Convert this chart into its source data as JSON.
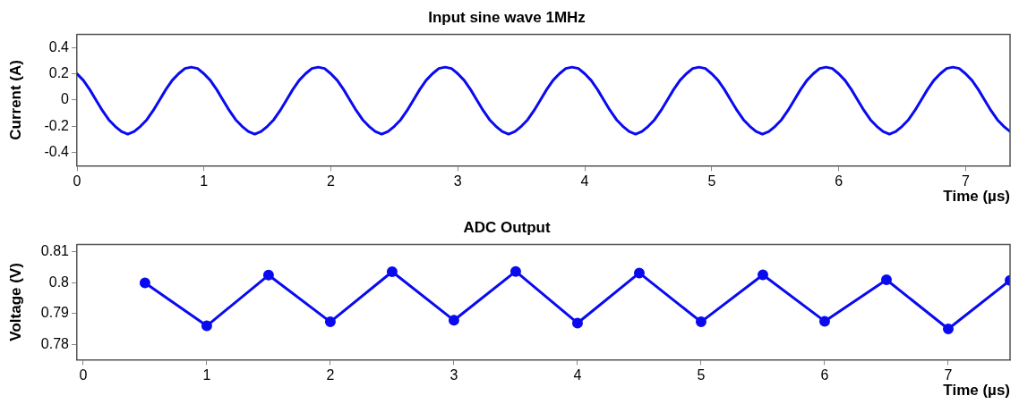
{
  "chart_data": [
    {
      "type": "line",
      "title": "Input sine wave 1MHz",
      "xlabel": "Time (µs)",
      "ylabel": "Current (A)",
      "marker": "none",
      "line_style": "solid",
      "grid": false,
      "legend": false,
      "xlim": [
        0,
        7.35
      ],
      "xticks": [
        0,
        1,
        2,
        3,
        4,
        5,
        6,
        7
      ],
      "ylim": [
        -0.5,
        0.5
      ],
      "yticks": [
        -0.4,
        -0.2,
        0,
        0.2,
        0.4
      ],
      "series": [
        {
          "color": "#0a0af0",
          "x": [
            0,
            0.05,
            0.1,
            0.15,
            0.2,
            0.25,
            0.3,
            0.35,
            0.4,
            0.45,
            0.5,
            0.55,
            0.6,
            0.65,
            0.7,
            0.75,
            0.8,
            0.85,
            0.9,
            0.95,
            1,
            1.05,
            1.1,
            1.15,
            1.2,
            1.25,
            1.3,
            1.35,
            1.4,
            1.45,
            1.5,
            1.55,
            1.6,
            1.65,
            1.7,
            1.75,
            1.8,
            1.85,
            1.9,
            1.95,
            2,
            2.05,
            2.1,
            2.15,
            2.2,
            2.25,
            2.3,
            2.35,
            2.4,
            2.45,
            2.5,
            2.55,
            2.6,
            2.65,
            2.7,
            2.75,
            2.8,
            2.85,
            2.9,
            2.95,
            3,
            3.05,
            3.1,
            3.15,
            3.2,
            3.25,
            3.3,
            3.35,
            3.4,
            3.45,
            3.5,
            3.55,
            3.6,
            3.65,
            3.7,
            3.75,
            3.8,
            3.85,
            3.9,
            3.95,
            4,
            4.05,
            4.1,
            4.15,
            4.2,
            4.25,
            4.3,
            4.35,
            4.4,
            4.45,
            4.5,
            4.55,
            4.6,
            4.65,
            4.7,
            4.75,
            4.8,
            4.85,
            4.9,
            4.95,
            5,
            5.05,
            5.1,
            5.15,
            5.2,
            5.25,
            5.3,
            5.35,
            5.4,
            5.45,
            5.5,
            5.55,
            5.6,
            5.65,
            5.7,
            5.75,
            5.8,
            5.85,
            5.9,
            5.95,
            6,
            6.05,
            6.1,
            6.15,
            6.2,
            6.25,
            6.3,
            6.35,
            6.4,
            6.45,
            6.5,
            6.55,
            6.6,
            6.65,
            6.7,
            6.75,
            6.8,
            6.85,
            6.9,
            6.95,
            7,
            7.05,
            7.1,
            7.15,
            7.2,
            7.25,
            7.3,
            7.35
          ],
          "values": [
            0.2,
            0.15,
            0.08,
            0,
            -0.08,
            -0.15,
            -0.2,
            -0.24,
            -0.26,
            -0.24,
            -0.2,
            -0.15,
            -0.08,
            0,
            0.08,
            0.15,
            0.2,
            0.24,
            0.25,
            0.24,
            0.2,
            0.15,
            0.08,
            0,
            -0.08,
            -0.15,
            -0.2,
            -0.24,
            -0.26,
            -0.24,
            -0.2,
            -0.15,
            -0.08,
            0,
            0.08,
            0.15,
            0.2,
            0.24,
            0.25,
            0.24,
            0.2,
            0.15,
            0.08,
            0,
            -0.08,
            -0.15,
            -0.2,
            -0.24,
            -0.26,
            -0.24,
            -0.2,
            -0.15,
            -0.08,
            0,
            0.08,
            0.15,
            0.2,
            0.24,
            0.25,
            0.24,
            0.2,
            0.15,
            0.08,
            0,
            -0.08,
            -0.15,
            -0.2,
            -0.24,
            -0.26,
            -0.24,
            -0.2,
            -0.15,
            -0.08,
            0,
            0.08,
            0.15,
            0.2,
            0.24,
            0.25,
            0.24,
            0.2,
            0.15,
            0.08,
            0,
            -0.08,
            -0.15,
            -0.2,
            -0.24,
            -0.26,
            -0.24,
            -0.2,
            -0.15,
            -0.08,
            0,
            0.08,
            0.15,
            0.2,
            0.24,
            0.25,
            0.24,
            0.2,
            0.15,
            0.08,
            0,
            -0.08,
            -0.15,
            -0.2,
            -0.24,
            -0.26,
            -0.24,
            -0.2,
            -0.15,
            -0.08,
            0,
            0.08,
            0.15,
            0.2,
            0.24,
            0.25,
            0.24,
            0.2,
            0.15,
            0.08,
            0,
            -0.08,
            -0.15,
            -0.2,
            -0.24,
            -0.26,
            -0.24,
            -0.2,
            -0.15,
            -0.08,
            0,
            0.08,
            0.15,
            0.2,
            0.24,
            0.25,
            0.24,
            0.2,
            0.15,
            0.08,
            0,
            -0.08,
            -0.15,
            -0.2,
            -0.24
          ]
        }
      ]
    },
    {
      "type": "line",
      "title": "ADC Output",
      "xlabel": "Time (µs)",
      "ylabel": "Voltage (V)",
      "marker": "circle",
      "line_style": "solid",
      "grid": false,
      "legend": false,
      "xlim": [
        -0.05,
        7.5
      ],
      "xticks": [
        0,
        1,
        2,
        3,
        4,
        5,
        6,
        7
      ],
      "ylim": [
        0.775,
        0.8125
      ],
      "yticks": [
        0.78,
        0.79,
        0.8,
        0.81
      ],
      "series": [
        {
          "color": "#0a0af0",
          "x": [
            0.5,
            1,
            1.5,
            2,
            2.5,
            3,
            3.5,
            4,
            4.5,
            5,
            5.5,
            6,
            6.5,
            7,
            7.5
          ],
          "values": [
            0.8,
            0.786,
            0.8025,
            0.7873,
            0.8036,
            0.7878,
            0.8037,
            0.7869,
            0.8032,
            0.7873,
            0.8026,
            0.7875,
            0.801,
            0.785,
            0.8008
          ]
        }
      ]
    }
  ]
}
